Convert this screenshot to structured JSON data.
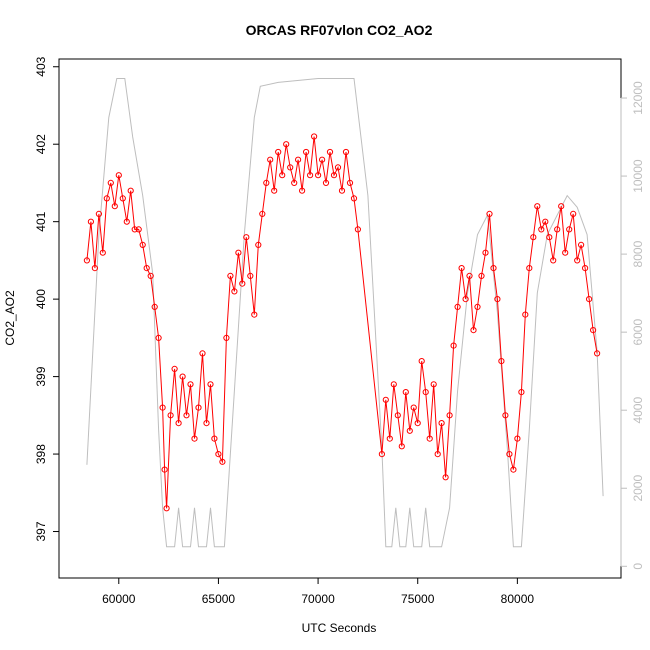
{
  "chart_data": {
    "type": "line",
    "title": "ORCAS RF07vlon CO2_AO2",
    "xlabel": "UTC Seconds",
    "ylabel": "CO2_AO2",
    "xlim": [
      57000,
      85200
    ],
    "ylim": [
      396.4,
      403.1
    ],
    "y2lim": [
      -300,
      13000
    ],
    "x_ticks": [
      60000,
      65000,
      70000,
      75000,
      80000
    ],
    "y_ticks": [
      397,
      398,
      399,
      400,
      401,
      402,
      403
    ],
    "y2_ticks": [
      0,
      2000,
      4000,
      6000,
      8000,
      10000,
      12000
    ],
    "grid": false,
    "colors": {
      "co2": "#ff0000",
      "secondary": "#bebebe",
      "axis": "#000000"
    },
    "series": [
      {
        "values": [
          [
            58400,
            400.5
          ],
          [
            58600,
            401.0
          ],
          [
            58800,
            400.4
          ],
          [
            59000,
            401.1
          ],
          [
            59200,
            400.6
          ],
          [
            59400,
            401.3
          ],
          [
            59600,
            401.5
          ],
          [
            59800,
            401.2
          ],
          [
            60000,
            401.6
          ],
          [
            60200,
            401.3
          ],
          [
            60400,
            401.0
          ],
          [
            60600,
            401.4
          ],
          [
            60800,
            400.9
          ],
          [
            61000,
            400.9
          ],
          [
            61200,
            400.7
          ],
          [
            61400,
            400.4
          ],
          [
            61600,
            400.3
          ],
          [
            61800,
            399.9
          ],
          [
            62000,
            399.5
          ],
          [
            62200,
            398.6
          ],
          [
            62300,
            397.8
          ],
          [
            62400,
            397.3
          ],
          [
            62600,
            398.5
          ],
          [
            62800,
            399.1
          ],
          [
            63000,
            398.4
          ],
          [
            63200,
            399.0
          ],
          [
            63400,
            398.5
          ],
          [
            63600,
            398.9
          ],
          [
            63800,
            398.2
          ],
          [
            64000,
            398.6
          ],
          [
            64200,
            399.3
          ],
          [
            64400,
            398.4
          ],
          [
            64600,
            398.9
          ],
          [
            64800,
            398.2
          ],
          [
            65000,
            398.0
          ],
          [
            65200,
            397.9
          ],
          [
            65400,
            399.5
          ],
          [
            65600,
            400.3
          ],
          [
            65800,
            400.1
          ],
          [
            66000,
            400.6
          ],
          [
            66200,
            400.2
          ],
          [
            66400,
            400.8
          ],
          [
            66600,
            400.3
          ],
          [
            66800,
            399.8
          ],
          [
            67000,
            400.7
          ],
          [
            67200,
            401.1
          ],
          [
            67400,
            401.5
          ],
          [
            67600,
            401.8
          ],
          [
            67800,
            401.4
          ],
          [
            68000,
            401.9
          ],
          [
            68200,
            401.6
          ],
          [
            68400,
            402.0
          ],
          [
            68600,
            401.7
          ],
          [
            68800,
            401.5
          ],
          [
            69000,
            401.8
          ],
          [
            69200,
            401.4
          ],
          [
            69400,
            401.9
          ],
          [
            69600,
            401.6
          ],
          [
            69800,
            402.1
          ],
          [
            70000,
            401.6
          ],
          [
            70200,
            401.8
          ],
          [
            70400,
            401.5
          ],
          [
            70600,
            401.9
          ],
          [
            70800,
            401.6
          ],
          [
            71000,
            401.7
          ],
          [
            71200,
            401.4
          ],
          [
            71400,
            401.9
          ],
          [
            71600,
            401.5
          ],
          [
            71800,
            401.3
          ],
          [
            72000,
            400.9
          ],
          [
            73200,
            398.0
          ],
          [
            73400,
            398.7
          ],
          [
            73600,
            398.2
          ],
          [
            73800,
            398.9
          ],
          [
            74000,
            398.5
          ],
          [
            74200,
            398.1
          ],
          [
            74400,
            398.8
          ],
          [
            74600,
            398.3
          ],
          [
            74800,
            398.6
          ],
          [
            75000,
            398.4
          ],
          [
            75200,
            399.2
          ],
          [
            75400,
            398.8
          ],
          [
            75600,
            398.2
          ],
          [
            75800,
            398.9
          ],
          [
            76000,
            398.0
          ],
          [
            76200,
            398.4
          ],
          [
            76400,
            397.7
          ],
          [
            76600,
            398.5
          ],
          [
            76800,
            399.4
          ],
          [
            77000,
            399.9
          ],
          [
            77200,
            400.4
          ],
          [
            77400,
            400.0
          ],
          [
            77600,
            400.3
          ],
          [
            77800,
            399.6
          ],
          [
            78000,
            399.9
          ],
          [
            78200,
            400.3
          ],
          [
            78400,
            400.6
          ],
          [
            78600,
            401.1
          ],
          [
            78800,
            400.4
          ],
          [
            79000,
            400.0
          ],
          [
            79200,
            399.2
          ],
          [
            79400,
            398.5
          ],
          [
            79600,
            398.0
          ],
          [
            79800,
            397.8
          ],
          [
            80000,
            398.2
          ],
          [
            80200,
            398.8
          ],
          [
            80400,
            399.8
          ],
          [
            80600,
            400.4
          ],
          [
            80800,
            400.8
          ],
          [
            81000,
            401.2
          ],
          [
            81200,
            400.9
          ],
          [
            81400,
            401.0
          ],
          [
            81600,
            400.8
          ],
          [
            81800,
            400.5
          ],
          [
            82000,
            400.9
          ],
          [
            82200,
            401.2
          ],
          [
            82400,
            400.6
          ],
          [
            82600,
            400.9
          ],
          [
            82800,
            401.1
          ],
          [
            83000,
            400.5
          ],
          [
            83200,
            400.7
          ],
          [
            83400,
            400.4
          ],
          [
            83600,
            400.0
          ],
          [
            83800,
            399.6
          ],
          [
            84000,
            399.3
          ]
        ]
      },
      {
        "axis": "right",
        "values": [
          [
            58400,
            2600
          ],
          [
            59000,
            8500
          ],
          [
            59500,
            11500
          ],
          [
            59900,
            12500
          ],
          [
            60300,
            12500
          ],
          [
            60700,
            11000
          ],
          [
            61200,
            9500
          ],
          [
            61700,
            7500
          ],
          [
            62000,
            3500
          ],
          [
            62200,
            1500
          ],
          [
            62400,
            500
          ],
          [
            62800,
            500
          ],
          [
            63000,
            1500
          ],
          [
            63200,
            500
          ],
          [
            63600,
            500
          ],
          [
            63800,
            1500
          ],
          [
            64000,
            500
          ],
          [
            64400,
            500
          ],
          [
            64600,
            1500
          ],
          [
            64800,
            500
          ],
          [
            65300,
            500
          ],
          [
            65800,
            4500
          ],
          [
            66300,
            8500
          ],
          [
            66800,
            11500
          ],
          [
            67100,
            12300
          ],
          [
            68000,
            12400
          ],
          [
            70000,
            12500
          ],
          [
            71800,
            12500
          ],
          [
            72500,
            9500
          ],
          [
            73200,
            3000
          ],
          [
            73400,
            500
          ],
          [
            73700,
            500
          ],
          [
            73900,
            1500
          ],
          [
            74100,
            500
          ],
          [
            74400,
            500
          ],
          [
            74600,
            1500
          ],
          [
            74800,
            500
          ],
          [
            75200,
            500
          ],
          [
            75400,
            1500
          ],
          [
            75600,
            500
          ],
          [
            76200,
            500
          ],
          [
            76600,
            1500
          ],
          [
            77000,
            4500
          ],
          [
            77500,
            7000
          ],
          [
            78000,
            8500
          ],
          [
            78500,
            9000
          ],
          [
            79000,
            6500
          ],
          [
            79500,
            3000
          ],
          [
            79800,
            500
          ],
          [
            80200,
            500
          ],
          [
            80600,
            3500
          ],
          [
            81000,
            7000
          ],
          [
            81500,
            8500
          ],
          [
            82000,
            9000
          ],
          [
            82500,
            9500
          ],
          [
            83000,
            9200
          ],
          [
            83500,
            8500
          ],
          [
            84000,
            5500
          ],
          [
            84300,
            1800
          ]
        ]
      }
    ]
  }
}
